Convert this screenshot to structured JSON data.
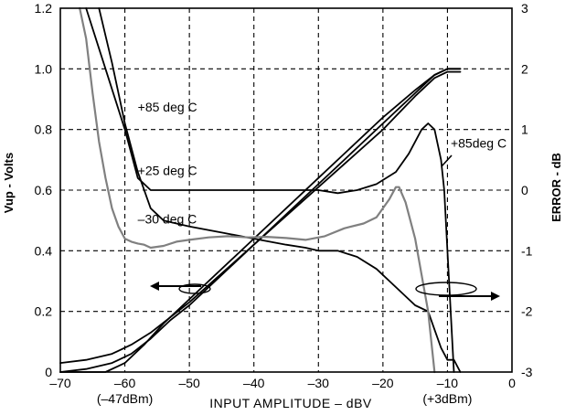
{
  "chart_data": {
    "type": "line",
    "xlabel": "INPUT AMPLITUDE – dBV",
    "ylabel_left": "Vup - Volts",
    "ylabel_right": "ERROR - dB",
    "xlim": [
      -70,
      0
    ],
    "ylim_left": [
      0,
      1.2
    ],
    "ylim_right": [
      -3,
      3
    ],
    "grid": true,
    "x_ticks": [
      -70,
      -60,
      -50,
      -40,
      -30,
      -20,
      -10,
      0
    ],
    "x_tick_labels": [
      "–70",
      "–60",
      "–50",
      "–40",
      "–30",
      "–20",
      "–10",
      "0"
    ],
    "y_left_ticks": [
      0,
      0.2,
      0.4,
      0.6,
      0.8,
      1.0,
      1.2
    ],
    "y_left_tick_labels": [
      "0",
      "0.2",
      "0.4",
      "0.6",
      "0.8",
      "1.0",
      "1.2"
    ],
    "y_right_ticks": [
      -3,
      -2,
      -1,
      0,
      1,
      2,
      3
    ],
    "y_right_tick_labels": [
      "-3",
      "-2",
      "-1",
      "0",
      "1",
      "2",
      "3"
    ],
    "x_sublabels": [
      {
        "text": "(–47dBm)",
        "x": -60
      },
      {
        "text": "(+3dBm)",
        "x": -10
      }
    ],
    "annotations": [
      {
        "text": "+85 deg C",
        "x": -58,
        "y": 0.86
      },
      {
        "text": "+25 deg C",
        "x": -58,
        "y": 0.65
      },
      {
        "text": "–30 deg C",
        "x": -58,
        "y": 0.49
      },
      {
        "text": "+85deg C",
        "x": -9.5,
        "y": 0.74
      }
    ],
    "series": [
      {
        "axis": "left",
        "color": "#000000",
        "width": 1.8,
        "x": [
          -70,
          -66,
          -62,
          -59,
          -56,
          -53,
          -50,
          -40,
          -30,
          -20,
          -15,
          -12,
          -10,
          -8
        ],
        "y": [
          0.03,
          0.04,
          0.06,
          0.09,
          0.13,
          0.18,
          0.23,
          0.42,
          0.61,
          0.8,
          0.91,
          0.97,
          0.99,
          0.99
        ]
      },
      {
        "axis": "left",
        "color": "#000000",
        "width": 1.8,
        "x": [
          -70,
          -66,
          -62,
          -59,
          -56,
          -53,
          -50,
          -40,
          -30,
          -20,
          -15,
          -12,
          -10,
          -8
        ],
        "y": [
          0.0,
          0.01,
          0.03,
          0.06,
          0.11,
          0.17,
          0.22,
          0.42,
          0.62,
          0.82,
          0.92,
          0.98,
          1.0,
          1.0
        ]
      },
      {
        "axis": "left",
        "color": "#000000",
        "width": 1.8,
        "x": [
          -70,
          -67,
          -63,
          -60,
          -57,
          -54,
          -50,
          -40,
          -30,
          -20,
          -15,
          -12,
          -10,
          -8
        ],
        "y": [
          0.0,
          0.0,
          0.0,
          0.03,
          0.09,
          0.16,
          0.24,
          0.44,
          0.64,
          0.84,
          0.93,
          0.98,
          1.0,
          1.0
        ]
      },
      {
        "name": "+85 deg C",
        "axis": "right",
        "color": "#000000",
        "width": 1.8,
        "x": [
          -64,
          -62,
          -60,
          -58,
          -56,
          -54,
          -50,
          -45,
          -40,
          -35,
          -32,
          -30,
          -27,
          -24,
          -21,
          -18,
          -15,
          -13,
          -12,
          -11,
          -10,
          -9,
          -8
        ],
        "y": [
          3.1,
          2.1,
          1.1,
          0.3,
          -0.3,
          -0.5,
          -0.6,
          -0.7,
          -0.8,
          -0.9,
          -0.95,
          -1.0,
          -1.0,
          -1.1,
          -1.3,
          -1.6,
          -1.9,
          -2.0,
          -2.3,
          -2.6,
          -2.8,
          -2.8,
          -3.0
        ]
      },
      {
        "name": "+25 deg C",
        "axis": "right",
        "color": "#000000",
        "width": 1.8,
        "x": [
          -66,
          -63,
          -60,
          -58,
          -56,
          -54,
          -50,
          -45,
          -40,
          -35,
          -30,
          -27,
          -24,
          -21,
          -18,
          -16,
          -14,
          -13,
          -12,
          -11,
          -10.5,
          -10,
          -9
        ],
        "y": [
          3.1,
          2.0,
          1.0,
          0.2,
          0.0,
          0.0,
          0.0,
          0.0,
          0.0,
          0.0,
          0.0,
          -0.05,
          0.0,
          0.1,
          0.3,
          0.6,
          1.0,
          1.1,
          1.0,
          0.5,
          0.0,
          -1.0,
          -3.0
        ]
      },
      {
        "name": "–30 deg C",
        "axis": "right",
        "color": "#808080",
        "width": 2.2,
        "x": [
          -67,
          -66,
          -65,
          -64,
          -63,
          -62,
          -61,
          -60,
          -59,
          -58,
          -57,
          -56,
          -54,
          -52,
          -50,
          -47,
          -44,
          -41,
          -38,
          -35,
          -32,
          -29,
          -26,
          -23,
          -21,
          -19,
          -18,
          -17.5,
          -16.5,
          -15,
          -14,
          -13,
          -12
        ],
        "y": [
          3.1,
          2.5,
          1.6,
          0.8,
          0.2,
          -0.3,
          -0.6,
          -0.8,
          -0.85,
          -0.88,
          -0.9,
          -0.95,
          -0.92,
          -0.85,
          -0.82,
          -0.78,
          -0.76,
          -0.78,
          -0.77,
          -0.79,
          -0.82,
          -0.76,
          -0.63,
          -0.55,
          -0.45,
          -0.15,
          0.05,
          0.05,
          -0.2,
          -0.8,
          -1.4,
          -2.0,
          -3.0
        ]
      }
    ]
  }
}
